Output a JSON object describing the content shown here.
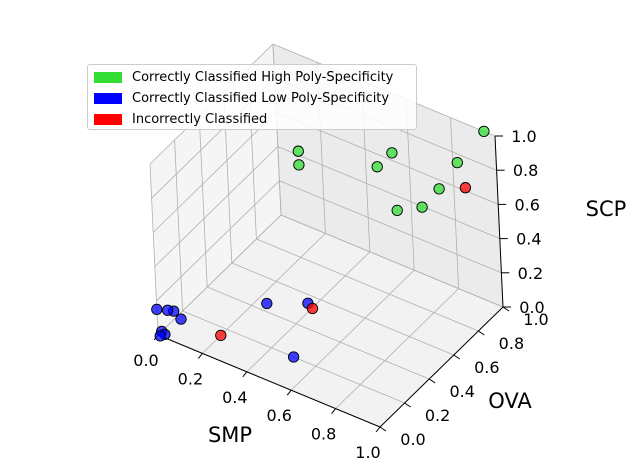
{
  "chart_data": {
    "type": "scatter",
    "dimensions": 3,
    "axes": {
      "x": {
        "label": "SMP",
        "range": [
          0,
          1
        ],
        "ticks": [
          "0.0",
          "0.2",
          "0.4",
          "0.6",
          "0.8",
          "1.0"
        ]
      },
      "y": {
        "label": "OVA",
        "range": [
          0,
          1
        ],
        "ticks": [
          "0.0",
          "0.2",
          "0.4",
          "0.6",
          "0.8",
          "1.0"
        ]
      },
      "z": {
        "label": "SCP",
        "range": [
          0,
          1
        ],
        "ticks": [
          "0.0",
          "0.2",
          "0.4",
          "0.6",
          "0.8",
          "1.0"
        ]
      }
    },
    "grid": true,
    "legend_position": "top-left",
    "series": [
      {
        "name": "Correctly Classified High Poly-Specificity",
        "color": "#33dd33",
        "points": [
          {
            "x": 0.7,
            "y": 0.7,
            "z": 0.95
          },
          {
            "x": 0.95,
            "y": 1.0,
            "z": 1.0
          },
          {
            "x": 0.88,
            "y": 0.9,
            "z": 0.85
          },
          {
            "x": 0.6,
            "y": 0.75,
            "z": 0.78
          },
          {
            "x": 0.3,
            "y": 0.65,
            "z": 0.78
          },
          {
            "x": 0.3,
            "y": 0.65,
            "z": 0.7
          },
          {
            "x": 0.85,
            "y": 0.8,
            "z": 0.75
          },
          {
            "x": 0.78,
            "y": 0.78,
            "z": 0.62
          },
          {
            "x": 0.7,
            "y": 0.72,
            "z": 0.6
          }
        ]
      },
      {
        "name": "Correctly Classified Low Poly-Specificity",
        "color": "#0000ff",
        "points": [
          {
            "x": 0.0,
            "y": 0.0,
            "z": 0.15
          },
          {
            "x": 0.02,
            "y": 0.05,
            "z": 0.12
          },
          {
            "x": 0.03,
            "y": 0.08,
            "z": 0.1
          },
          {
            "x": 0.05,
            "y": 0.1,
            "z": 0.05
          },
          {
            "x": 0.0,
            "y": 0.03,
            "z": 0.0
          },
          {
            "x": 0.02,
            "y": 0.02,
            "z": 0.0
          },
          {
            "x": 0.01,
            "y": 0.0,
            "z": 0.0
          },
          {
            "x": 0.3,
            "y": 0.35,
            "z": 0.1
          },
          {
            "x": 0.5,
            "y": 0.2,
            "z": 0.0
          },
          {
            "x": 0.4,
            "y": 0.5,
            "z": 0.05
          }
        ]
      },
      {
        "name": "Incorrectly Classified",
        "color": "#ff0000",
        "points": [
          {
            "x": 0.9,
            "y": 0.92,
            "z": 0.7
          },
          {
            "x": 0.42,
            "y": 0.5,
            "z": 0.03
          },
          {
            "x": 0.2,
            "y": 0.15,
            "z": 0.0
          }
        ]
      }
    ]
  }
}
